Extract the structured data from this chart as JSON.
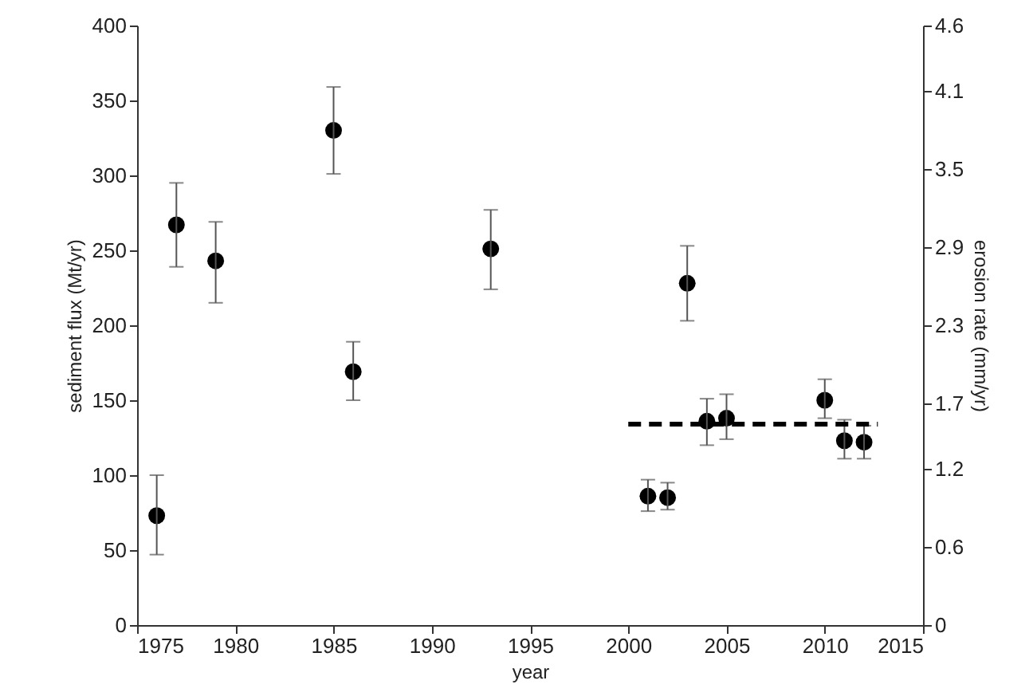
{
  "chart_data": {
    "type": "scatter",
    "xlabel": "year",
    "ylabel": "sediment flux (Mt/yr)",
    "y2label": "erosion rate (mm/yr)",
    "xlim": [
      1975,
      2015
    ],
    "xticks": [
      1975,
      1980,
      1985,
      1990,
      1995,
      2000,
      2005,
      2010,
      2015
    ],
    "ylim": [
      0,
      400
    ],
    "yticks": [
      0,
      50,
      100,
      150,
      200,
      250,
      300,
      350,
      400
    ],
    "y2lim": [
      0,
      4.6
    ],
    "y2ticks": [
      0,
      0.6,
      1.2,
      1.7,
      2.3,
      2.9,
      3.5,
      4.1,
      4.6
    ],
    "grid": false,
    "marker": "circle",
    "series": [
      {
        "type": "scatter",
        "color": "#000000",
        "x": [
          1976,
          1977,
          1979,
          1985,
          1986,
          1993,
          2001,
          2002,
          2003,
          2004,
          2005,
          2010,
          2011,
          2012
        ],
        "values": [
          73,
          267,
          243,
          330,
          169,
          251,
          86,
          85,
          228,
          136,
          138,
          150,
          123,
          122
        ],
        "errors": [
          [
            47,
            100
          ],
          [
            239,
            295
          ],
          [
            215,
            269
          ],
          [
            301,
            359
          ],
          [
            150,
            189
          ],
          [
            224,
            277
          ],
          [
            76,
            97
          ],
          [
            77,
            95
          ],
          [
            203,
            253
          ],
          [
            120,
            151
          ],
          [
            124,
            154
          ],
          [
            138,
            164
          ],
          [
            111,
            137
          ],
          [
            111,
            133
          ]
        ]
      },
      {
        "type": "line",
        "color": "#000000",
        "line_style": "dashed",
        "marker": "none",
        "x": [
          2000,
          2012.7
        ],
        "values": [
          134,
          134
        ]
      }
    ]
  }
}
